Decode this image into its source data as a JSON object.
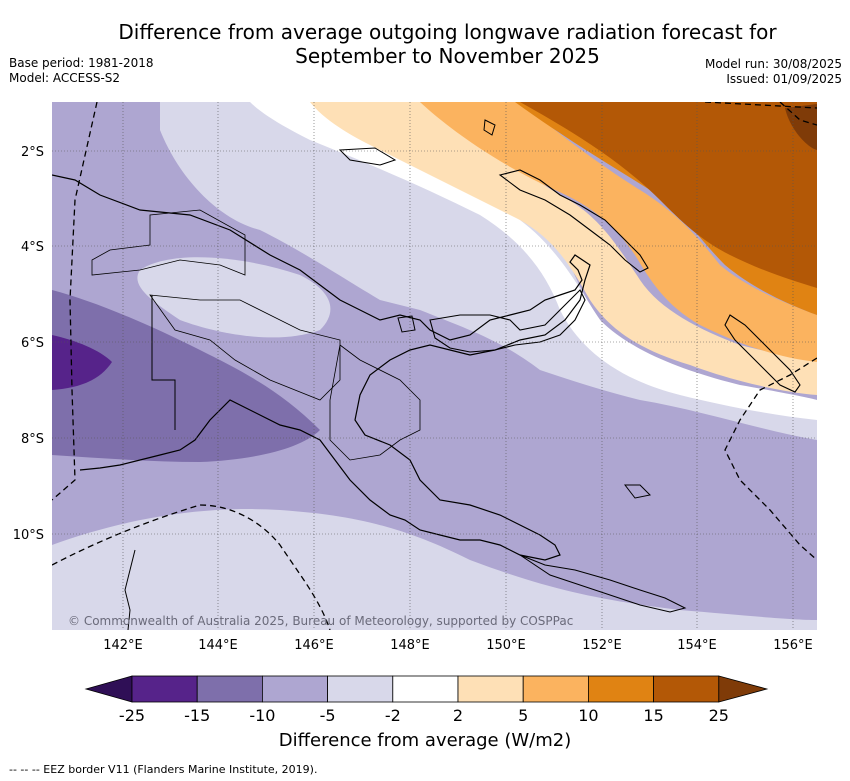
{
  "title_line1": "Difference from average outgoing longwave radiation forecast for",
  "title_line2": "September to November 2025",
  "meta_left": [
    "Base period: 1981-2018",
    "Model: ACCESS-S2"
  ],
  "meta_right": [
    "Model run: 30/08/2025",
    "Issued: 01/09/2025"
  ],
  "lat_labels": [
    "2°S",
    "4°S",
    "6°S",
    "8°S",
    "10°S"
  ],
  "lon_labels": [
    "142°E",
    "144°E",
    "146°E",
    "148°E",
    "150°E",
    "152°E",
    "154°E",
    "156°E"
  ],
  "copyright": "© Commonwealth of Australia 2025, Bureau of Meteorology, supported by COSPPac",
  "colorbar": {
    "ticks": [
      "-25",
      "-15",
      "-10",
      "-5",
      "-2",
      "2",
      "5",
      "10",
      "15",
      "25"
    ],
    "colors": [
      "#2f0f56",
      "#56238a",
      "#7e6fab",
      "#aea6d1",
      "#d8d8ea",
      "#ffffff",
      "#fee0b6",
      "#fbb35f",
      "#e08313",
      "#b35806",
      "#7f3b08"
    ],
    "label": "Difference from average (W/m2)"
  },
  "footnote": "--  --  -- EEZ border V11 (Flanders Marine Institute, 2019)."
}
